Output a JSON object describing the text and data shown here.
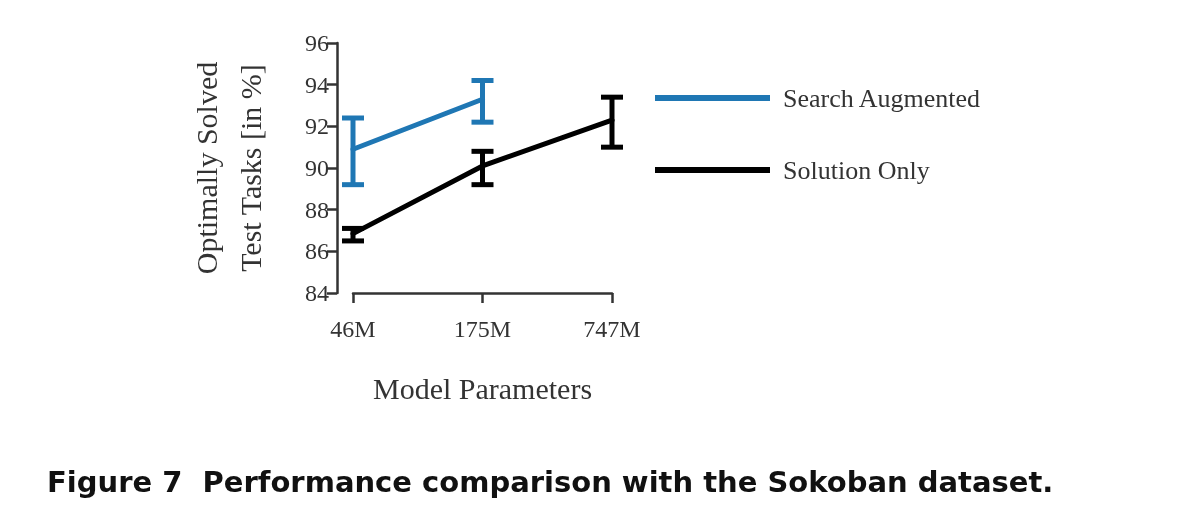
{
  "chart_data": {
    "type": "line",
    "title": "Figure 7  Performance comparison with the Sokoban dataset.",
    "xlabel": "Model Parameters",
    "ylabel": "Optimally Solved\nTest Tasks [in %]",
    "categories": [
      "46M",
      "175M",
      "747M"
    ],
    "series": [
      {
        "name": "Search Augmented",
        "color": "#1f77b4",
        "values": [
          90.9,
          93.3,
          null
        ],
        "errors": [
          [
            89.2,
            92.4
          ],
          [
            92.2,
            94.2
          ],
          null
        ]
      },
      {
        "name": "Solution Only",
        "color": "#000000",
        "values": [
          86.85,
          90.1,
          92.3
        ],
        "errors": [
          [
            86.5,
            87.1
          ],
          [
            89.2,
            90.8
          ],
          [
            91.0,
            93.4
          ]
        ]
      }
    ],
    "ylim": [
      84,
      96
    ],
    "yticks": [
      84,
      86,
      88,
      90,
      92,
      94,
      96
    ],
    "grid": false,
    "legend": "right",
    "marker": "none",
    "line_style": "solid"
  }
}
